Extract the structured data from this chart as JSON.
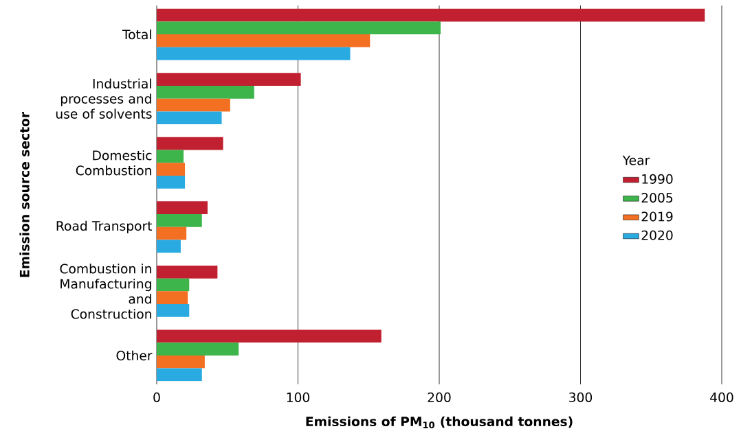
{
  "chart_data": {
    "type": "bar",
    "orientation": "horizontal",
    "xlabel": "Emissions of PM$_{10}$ (thousand tonnes)",
    "ylabel": "Emission source sector",
    "legend_title": "Year",
    "legend": "right",
    "categories": [
      "Total",
      "Industrial processes and use of solvents",
      "Domestic Combustion",
      "Road Transport",
      "Combustion in Manufacturing and Construction",
      "Other"
    ],
    "series": [
      {
        "name": "1990",
        "color": "#c0202f",
        "values": [
          388,
          102,
          47,
          36,
          43,
          159
        ]
      },
      {
        "name": "2005",
        "color": "#3db54a",
        "values": [
          201,
          69,
          19,
          32,
          23,
          58
        ]
      },
      {
        "name": "2019",
        "color": "#f36f21",
        "values": [
          151,
          52,
          20,
          21,
          22,
          34
        ]
      },
      {
        "name": "2020",
        "color": "#29abe2",
        "values": [
          137,
          46,
          20,
          17,
          23,
          32
        ]
      }
    ],
    "xlim": [
      0,
      400
    ],
    "xticks": [
      0,
      100,
      200,
      300,
      400
    ],
    "grid": "x"
  }
}
